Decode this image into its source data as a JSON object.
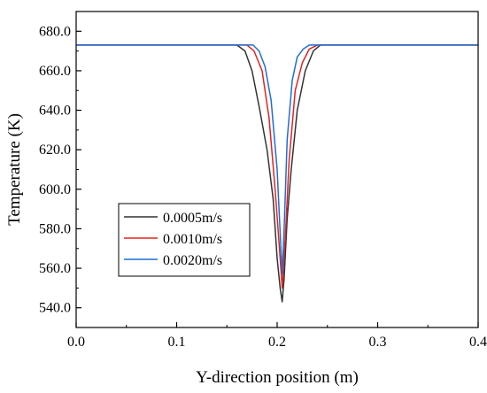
{
  "chart_data": {
    "type": "line",
    "xlabel": "Y-direction position (m)",
    "ylabel": "Temperature (K)",
    "xlim": [
      0.0,
      0.4
    ],
    "ylim": [
      530,
      690
    ],
    "xticks": [
      "0.0",
      "0.1",
      "0.2",
      "0.3",
      "0.4"
    ],
    "xtick_values": [
      0.0,
      0.1,
      0.2,
      0.3,
      0.4
    ],
    "yticks": [
      "540.0",
      "560.0",
      "580.0",
      "600.0",
      "620.0",
      "640.0",
      "660.0",
      "680.0"
    ],
    "ytick_values": [
      540,
      560,
      580,
      600,
      620,
      640,
      660,
      680
    ],
    "grid": false,
    "legend_position": "lower-left",
    "series": [
      {
        "name": "0.0005m/s",
        "color": "#333333",
        "x": [
          0.0,
          0.16,
          0.168,
          0.175,
          0.182,
          0.19,
          0.196,
          0.2,
          0.203,
          0.205,
          0.207,
          0.21,
          0.214,
          0.22,
          0.228,
          0.236,
          0.243,
          0.25,
          0.4
        ],
        "y": [
          673,
          673,
          670,
          660,
          642,
          620,
          595,
          565,
          550,
          543,
          555,
          585,
          610,
          640,
          660,
          670,
          673,
          673,
          673
        ]
      },
      {
        "name": "0.0010m/s",
        "color": "#e8211f",
        "x": [
          0.0,
          0.17,
          0.177,
          0.185,
          0.192,
          0.198,
          0.202,
          0.205,
          0.208,
          0.212,
          0.218,
          0.225,
          0.232,
          0.24,
          0.4
        ],
        "y": [
          673,
          673,
          670,
          660,
          636,
          600,
          572,
          550,
          575,
          615,
          650,
          664,
          671,
          673,
          673
        ]
      },
      {
        "name": "0.0020m/s",
        "color": "#1c6fd6",
        "x": [
          0.0,
          0.176,
          0.182,
          0.188,
          0.194,
          0.2,
          0.203,
          0.205,
          0.207,
          0.21,
          0.215,
          0.22,
          0.226,
          0.232,
          0.4
        ],
        "y": [
          673,
          673,
          670,
          662,
          645,
          610,
          578,
          557,
          580,
          625,
          655,
          667,
          671,
          673,
          673
        ]
      }
    ]
  }
}
